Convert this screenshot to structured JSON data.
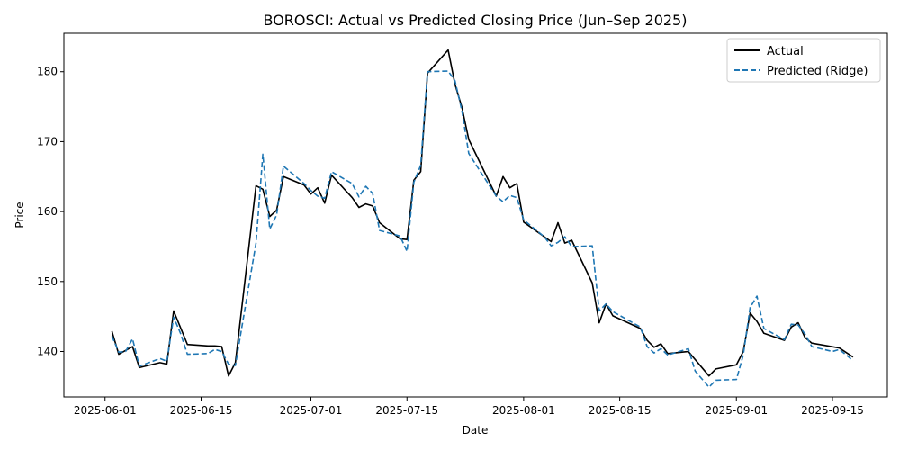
{
  "chart_data": {
    "type": "line",
    "title": "BOROSCI: Actual vs Predicted Closing Price (Jun–Sep 2025)",
    "xlabel": "Date",
    "ylabel": "Price",
    "x_ticks": [
      "2025-06-01",
      "2025-06-15",
      "2025-07-01",
      "2025-07-15",
      "2025-08-01",
      "2025-08-15",
      "2025-09-01",
      "2025-09-15"
    ],
    "y_ticks": [
      140,
      150,
      160,
      170,
      180
    ],
    "ylim": [
      133.5,
      185.5
    ],
    "xlim": [
      "2025-05-26",
      "2025-09-23"
    ],
    "grid": false,
    "legend_position": "top-right",
    "series": [
      {
        "name": "Actual",
        "color": "#000000",
        "style": "solid",
        "points": [
          [
            "2025-06-02",
            142.9
          ],
          [
            "2025-06-03",
            139.6
          ],
          [
            "2025-06-05",
            140.7
          ],
          [
            "2025-06-06",
            137.7
          ],
          [
            "2025-06-09",
            138.4
          ],
          [
            "2025-06-10",
            138.2
          ],
          [
            "2025-06-11",
            145.8
          ],
          [
            "2025-06-13",
            141.0
          ],
          [
            "2025-06-16",
            140.8
          ],
          [
            "2025-06-17",
            140.8
          ],
          [
            "2025-06-18",
            140.7
          ],
          [
            "2025-06-19",
            136.5
          ],
          [
            "2025-06-20",
            138.4
          ],
          [
            "2025-06-23",
            163.7
          ],
          [
            "2025-06-24",
            163.2
          ],
          [
            "2025-06-25",
            159.3
          ],
          [
            "2025-06-26",
            160.2
          ],
          [
            "2025-06-27",
            165.0
          ],
          [
            "2025-06-30",
            163.8
          ],
          [
            "2025-07-01",
            162.5
          ],
          [
            "2025-07-02",
            163.4
          ],
          [
            "2025-07-03",
            161.2
          ],
          [
            "2025-07-04",
            165.2
          ],
          [
            "2025-07-07",
            162.0
          ],
          [
            "2025-07-08",
            160.6
          ],
          [
            "2025-07-09",
            161.1
          ],
          [
            "2025-07-10",
            160.8
          ],
          [
            "2025-07-11",
            158.4
          ],
          [
            "2025-07-14",
            156.1
          ],
          [
            "2025-07-15",
            156.0
          ],
          [
            "2025-07-16",
            164.5
          ],
          [
            "2025-07-17",
            165.7
          ],
          [
            "2025-07-18",
            179.8
          ],
          [
            "2025-07-21",
            183.1
          ],
          [
            "2025-07-22",
            178.2
          ],
          [
            "2025-07-23",
            174.9
          ],
          [
            "2025-07-24",
            170.3
          ],
          [
            "2025-07-28",
            162.2
          ],
          [
            "2025-07-29",
            165.0
          ],
          [
            "2025-07-30",
            163.4
          ],
          [
            "2025-07-31",
            164.0
          ],
          [
            "2025-08-01",
            158.5
          ],
          [
            "2025-08-04",
            156.4
          ],
          [
            "2025-08-05",
            155.7
          ],
          [
            "2025-08-06",
            158.4
          ],
          [
            "2025-08-07",
            155.5
          ],
          [
            "2025-08-08",
            155.9
          ],
          [
            "2025-08-11",
            149.8
          ],
          [
            "2025-08-12",
            144.1
          ],
          [
            "2025-08-13",
            146.8
          ],
          [
            "2025-08-14",
            145.1
          ],
          [
            "2025-08-18",
            143.3
          ],
          [
            "2025-08-19",
            141.6
          ],
          [
            "2025-08-20",
            140.6
          ],
          [
            "2025-08-21",
            141.1
          ],
          [
            "2025-08-22",
            139.7
          ],
          [
            "2025-08-25",
            140.0
          ],
          [
            "2025-08-28",
            136.5
          ],
          [
            "2025-08-29",
            137.5
          ],
          [
            "2025-09-01",
            138.1
          ],
          [
            "2025-09-02",
            140.0
          ],
          [
            "2025-09-03",
            145.5
          ],
          [
            "2025-09-04",
            144.3
          ],
          [
            "2025-09-05",
            142.6
          ],
          [
            "2025-09-08",
            141.6
          ],
          [
            "2025-09-09",
            143.5
          ],
          [
            "2025-09-10",
            144.1
          ],
          [
            "2025-09-11",
            142.0
          ],
          [
            "2025-09-12",
            141.2
          ],
          [
            "2025-09-16",
            140.5
          ],
          [
            "2025-09-18",
            139.2
          ]
        ]
      },
      {
        "name": "Predicted (Ridge)",
        "color": "#1f77b4",
        "style": "dashed",
        "points": [
          [
            "2025-06-02",
            142.2
          ],
          [
            "2025-06-03",
            139.9
          ],
          [
            "2025-06-04",
            140.0
          ],
          [
            "2025-06-05",
            141.8
          ],
          [
            "2025-06-06",
            137.9
          ],
          [
            "2025-06-09",
            139.0
          ],
          [
            "2025-06-10",
            138.6
          ],
          [
            "2025-06-11",
            144.9
          ],
          [
            "2025-06-12",
            142.6
          ],
          [
            "2025-06-13",
            139.6
          ],
          [
            "2025-06-16",
            139.7
          ],
          [
            "2025-06-17",
            140.3
          ],
          [
            "2025-06-18",
            140.0
          ],
          [
            "2025-06-19",
            138.2
          ],
          [
            "2025-06-20",
            138.0
          ],
          [
            "2025-06-23",
            155.5
          ],
          [
            "2025-06-24",
            168.2
          ],
          [
            "2025-06-25",
            157.5
          ],
          [
            "2025-06-26",
            159.5
          ],
          [
            "2025-06-27",
            166.5
          ],
          [
            "2025-06-30",
            164.0
          ],
          [
            "2025-07-01",
            163.0
          ],
          [
            "2025-07-02",
            162.2
          ],
          [
            "2025-07-03",
            161.9
          ],
          [
            "2025-07-04",
            165.7
          ],
          [
            "2025-07-07",
            164.0
          ],
          [
            "2025-07-08",
            162.1
          ],
          [
            "2025-07-09",
            163.6
          ],
          [
            "2025-07-10",
            162.6
          ],
          [
            "2025-07-11",
            157.3
          ],
          [
            "2025-07-14",
            156.5
          ],
          [
            "2025-07-15",
            154.3
          ],
          [
            "2025-07-16",
            164.2
          ],
          [
            "2025-07-17",
            166.6
          ],
          [
            "2025-07-18",
            180.0
          ],
          [
            "2025-07-21",
            180.1
          ],
          [
            "2025-07-22",
            178.7
          ],
          [
            "2025-07-23",
            174.4
          ],
          [
            "2025-07-24",
            168.3
          ],
          [
            "2025-07-28",
            162.2
          ],
          [
            "2025-07-29",
            161.4
          ],
          [
            "2025-07-30",
            162.3
          ],
          [
            "2025-07-31",
            162.0
          ],
          [
            "2025-08-01",
            158.8
          ],
          [
            "2025-08-04",
            156.4
          ],
          [
            "2025-08-05",
            155.1
          ],
          [
            "2025-08-06",
            155.6
          ],
          [
            "2025-08-07",
            156.4
          ],
          [
            "2025-08-08",
            155.0
          ],
          [
            "2025-08-11",
            155.1
          ],
          [
            "2025-08-12",
            145.8
          ],
          [
            "2025-08-13",
            146.8
          ],
          [
            "2025-08-14",
            145.7
          ],
          [
            "2025-08-18",
            143.5
          ],
          [
            "2025-08-19",
            140.7
          ],
          [
            "2025-08-20",
            139.8
          ],
          [
            "2025-08-21",
            140.4
          ],
          [
            "2025-08-22",
            139.5
          ],
          [
            "2025-08-25",
            140.4
          ],
          [
            "2025-08-26",
            137.2
          ],
          [
            "2025-08-28",
            134.9
          ],
          [
            "2025-08-29",
            135.9
          ],
          [
            "2025-09-01",
            136.0
          ],
          [
            "2025-09-02",
            139.5
          ],
          [
            "2025-09-03",
            146.3
          ],
          [
            "2025-09-04",
            147.9
          ],
          [
            "2025-09-05",
            143.3
          ],
          [
            "2025-09-08",
            141.7
          ],
          [
            "2025-09-09",
            143.9
          ],
          [
            "2025-09-10",
            143.8
          ],
          [
            "2025-09-11",
            142.5
          ],
          [
            "2025-09-12",
            140.7
          ],
          [
            "2025-09-15",
            140.0
          ],
          [
            "2025-09-16",
            140.3
          ],
          [
            "2025-09-18",
            138.7
          ]
        ]
      }
    ]
  }
}
